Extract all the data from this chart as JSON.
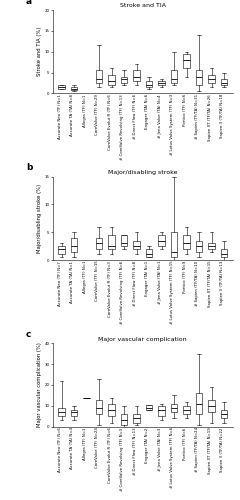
{
  "panels": [
    {
      "label": "a",
      "title": "Stroke and TIA",
      "ylabel": "Stroke and TIA (%)",
      "ylim": [
        0,
        20
      ],
      "yticks": [
        0,
        5,
        10,
        15,
        20
      ],
      "valves": [
        {
          "name": "Accurate Neo (TF)",
          "n": "N=1",
          "median": 1.5,
          "q1": 1.0,
          "q3": 2.0,
          "whislo": 1.0,
          "whishi": 2.0
        },
        {
          "name": "Accurate TA (TA)",
          "n": "N=8",
          "median": 1.0,
          "q1": 0.7,
          "q3": 1.5,
          "whislo": 0.5,
          "whishi": 2.0
        },
        {
          "name": "Allegra (TF)",
          "n": "N=1",
          "median": 0.0,
          "q1": 0.0,
          "q3": 0.0,
          "whislo": 0.0,
          "whishi": 0.0
        },
        {
          "name": "CoreValve (TF)",
          "n": "N=29",
          "median": 3.5,
          "q1": 2.5,
          "q3": 5.5,
          "whislo": 1.5,
          "whishi": 11.5
        },
        {
          "name": "CoreValve Evolut R (TF)",
          "n": "N=6",
          "median": 3.0,
          "q1": 2.0,
          "q3": 4.5,
          "whislo": 1.5,
          "whishi": 6.0
        },
        {
          "name": "# CoreValve Revolving (TF)",
          "n": "N=13",
          "median": 3.5,
          "q1": 2.5,
          "q3": 4.0,
          "whislo": 2.0,
          "whishi": 5.5
        },
        {
          "name": "# Direct Flow (TF)",
          "n": "N=6",
          "median": 4.0,
          "q1": 3.0,
          "q3": 5.5,
          "whislo": 2.0,
          "whishi": 7.0
        },
        {
          "name": "Engager (TA)",
          "n": "N=6",
          "median": 2.0,
          "q1": 1.5,
          "q3": 3.0,
          "whislo": 1.0,
          "whishi": 4.0
        },
        {
          "name": "# Jena Valve (TA)",
          "n": "N=4",
          "median": 2.5,
          "q1": 2.0,
          "q3": 3.0,
          "whislo": 1.5,
          "whishi": 3.5
        },
        {
          "name": "# Lotus Valve System (TF)",
          "n": "N=3",
          "median": 3.5,
          "q1": 2.5,
          "q3": 5.5,
          "whislo": 2.0,
          "whishi": 10.0
        },
        {
          "name": "Portico (TF)",
          "n": "N=6",
          "median": 8.0,
          "q1": 6.0,
          "q3": 9.5,
          "whislo": 4.0,
          "whishi": 10.0
        },
        {
          "name": "# Sapien (TF/TA)",
          "n": "N=31",
          "median": 4.0,
          "q1": 2.0,
          "q3": 5.5,
          "whislo": 0.5,
          "whishi": 14.0
        },
        {
          "name": "Sapien XT (TF/TA)",
          "n": "N=26",
          "median": 3.5,
          "q1": 2.5,
          "q3": 4.5,
          "whislo": 1.5,
          "whishi": 6.0
        },
        {
          "name": "Sapien 3 (TF/TA)",
          "n": "N=18",
          "median": 2.5,
          "q1": 2.0,
          "q3": 3.5,
          "whislo": 1.5,
          "whishi": 5.0
        }
      ]
    },
    {
      "label": "b",
      "title": "Major/disabling stroke",
      "ylabel": "Major/disabling stroke (%)",
      "ylim": [
        0,
        15
      ],
      "yticks": [
        0,
        5,
        10,
        15
      ],
      "valves": [
        {
          "name": "Accurate Neo (TF)",
          "n": "N=7",
          "median": 2.0,
          "q1": 1.0,
          "q3": 2.5,
          "whislo": 0.5,
          "whishi": 3.0
        },
        {
          "name": "Accurate TA (TA)",
          "n": "N=1",
          "median": 2.5,
          "q1": 1.5,
          "q3": 4.0,
          "whislo": 0.5,
          "whishi": 5.0
        },
        {
          "name": "Allegra (TF)",
          "n": "N=1",
          "median": 0.0,
          "q1": 0.0,
          "q3": 0.0,
          "whislo": 0.0,
          "whishi": 0.0
        },
        {
          "name": "CoreValve (TF)",
          "n": "N=15",
          "median": 3.0,
          "q1": 2.0,
          "q3": 4.0,
          "whislo": 1.0,
          "whishi": 6.0
        },
        {
          "name": "CoreValve Evolut R (TF)",
          "n": "N=3",
          "median": 2.5,
          "q1": 2.0,
          "q3": 4.5,
          "whislo": 1.0,
          "whishi": 6.0
        },
        {
          "name": "# CoreValve Revolving (TF)",
          "n": "N=6",
          "median": 3.0,
          "q1": 2.5,
          "q3": 4.5,
          "whislo": 2.0,
          "whishi": 4.5
        },
        {
          "name": "# Direct Flow (TF)",
          "n": "N=8",
          "median": 2.5,
          "q1": 2.0,
          "q3": 3.5,
          "whislo": 1.0,
          "whishi": 5.0
        },
        {
          "name": "Engager (TA)",
          "n": "N=1",
          "median": 1.0,
          "q1": 0.5,
          "q3": 2.0,
          "whislo": 0.5,
          "whishi": 2.5
        },
        {
          "name": "# Jena Valve (TA)",
          "n": "N=1",
          "median": 3.5,
          "q1": 2.5,
          "q3": 4.5,
          "whislo": 2.0,
          "whishi": 5.0
        },
        {
          "name": "# Lotus Valve System (TF)",
          "n": "N=15",
          "median": 1.5,
          "q1": 0.5,
          "q3": 5.0,
          "whislo": 0.0,
          "whishi": 15.0
        },
        {
          "name": "Portico (TF)",
          "n": "N=9",
          "median": 3.0,
          "q1": 2.0,
          "q3": 4.5,
          "whislo": 1.0,
          "whishi": 6.0
        },
        {
          "name": "# Sapien (TF/TA)",
          "n": "N=10",
          "median": 2.5,
          "q1": 1.5,
          "q3": 3.5,
          "whislo": 0.5,
          "whishi": 5.0
        },
        {
          "name": "Sapien XT (TF/TA)",
          "n": "N=15",
          "median": 2.5,
          "q1": 2.0,
          "q3": 3.0,
          "whislo": 1.5,
          "whishi": 5.0
        },
        {
          "name": "Sapien 3 (TF/TA)",
          "n": "N=13",
          "median": 1.0,
          "q1": 0.5,
          "q3": 2.0,
          "whislo": 0.0,
          "whishi": 3.5
        }
      ]
    },
    {
      "label": "c",
      "title": "Major vascular complication",
      "ylabel": "Major vascular complication (%)",
      "ylim": [
        0,
        40
      ],
      "yticks": [
        0,
        10,
        20,
        30,
        40
      ],
      "valves": [
        {
          "name": "Accurate Neo (TF)",
          "n": "N=6",
          "median": 7.0,
          "q1": 5.0,
          "q3": 9.0,
          "whislo": 3.0,
          "whishi": 22.0
        },
        {
          "name": "Accurate TA (TA)",
          "n": "N=4",
          "median": 7.0,
          "q1": 5.0,
          "q3": 8.0,
          "whislo": 3.0,
          "whishi": 10.0
        },
        {
          "name": "Allegra (TF)",
          "n": "N=1",
          "median": 14.0,
          "q1": 14.0,
          "q3": 14.0,
          "whislo": 14.0,
          "whishi": 14.0
        },
        {
          "name": "CoreValve (TF)",
          "n": "N=24",
          "median": 9.0,
          "q1": 6.0,
          "q3": 13.0,
          "whislo": 1.0,
          "whishi": 23.0
        },
        {
          "name": "CoreValve Evolut R (TF)",
          "n": "N=6",
          "median": 8.0,
          "q1": 5.0,
          "q3": 11.0,
          "whislo": 2.0,
          "whishi": 14.0
        },
        {
          "name": "# CoreValve Revolving (TF)",
          "n": "N=3",
          "median": 3.0,
          "q1": 1.0,
          "q3": 6.0,
          "whislo": 0.0,
          "whishi": 10.0
        },
        {
          "name": "# Direct Flow (TF)",
          "n": "N=13",
          "median": 4.0,
          "q1": 2.0,
          "q3": 6.0,
          "whislo": 1.0,
          "whishi": 10.0
        },
        {
          "name": "Engager (TA)",
          "n": "N=2",
          "median": 9.0,
          "q1": 8.0,
          "q3": 10.5,
          "whislo": 8.0,
          "whishi": 10.5
        },
        {
          "name": "# Jena Valve (TA)",
          "n": "N=3",
          "median": 8.0,
          "q1": 5.0,
          "q3": 10.0,
          "whislo": 3.0,
          "whishi": 11.0
        },
        {
          "name": "# Lotus Valve System (TF)",
          "n": "N=6",
          "median": 9.0,
          "q1": 7.0,
          "q3": 11.0,
          "whislo": 4.0,
          "whishi": 15.0
        },
        {
          "name": "Portico (TF)",
          "n": "N=6",
          "median": 8.0,
          "q1": 6.0,
          "q3": 10.0,
          "whislo": 4.0,
          "whishi": 12.0
        },
        {
          "name": "# Sapien (TF/TA)",
          "n": "N=24",
          "median": 11.0,
          "q1": 6.0,
          "q3": 16.0,
          "whislo": 1.0,
          "whishi": 35.0
        },
        {
          "name": "Sapien XT (TF/TA)",
          "n": "N=19",
          "median": 10.0,
          "q1": 7.0,
          "q3": 13.0,
          "whislo": 2.0,
          "whishi": 19.0
        },
        {
          "name": "Sapien 3 (TF/TA)",
          "n": "N=22",
          "median": 6.0,
          "q1": 4.0,
          "q3": 8.0,
          "whislo": 2.0,
          "whishi": 12.0
        }
      ]
    }
  ],
  "box_color": "#ffffff",
  "box_edge_color": "#000000",
  "median_color": "#000000",
  "whisker_color": "#000000",
  "cap_color": "#000000",
  "tick_fontsize": 2.8,
  "label_fontsize": 3.8,
  "title_fontsize": 4.5,
  "panel_label_fontsize": 6.5
}
